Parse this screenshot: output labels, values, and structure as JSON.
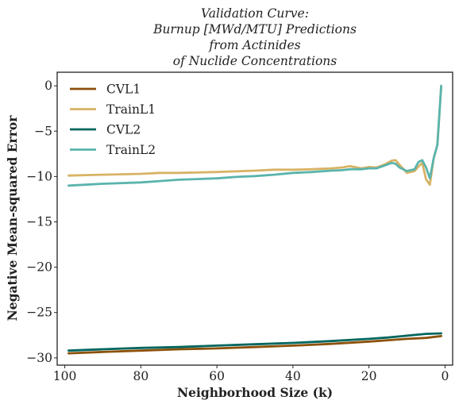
{
  "chart_data": {
    "type": "line",
    "title_lines": [
      "Validation Curve:",
      "Burnup [MWd/MTU] Predictions",
      "from Actinides",
      "of Nuclide Concentrations"
    ],
    "xlabel": "Neighborhood Size (k)",
    "ylabel": "Negative Mean-squared Error",
    "x_inverted": true,
    "xlim": [
      102,
      -2
    ],
    "ylim": [
      -30.8,
      1.5
    ],
    "xticks": [
      100,
      80,
      60,
      40,
      20,
      0
    ],
    "yticks": [
      0,
      -5,
      -10,
      -15,
      -20,
      -25,
      -30
    ],
    "xtick_labels": [
      "100",
      "80",
      "60",
      "40",
      "20",
      "0"
    ],
    "ytick_labels": [
      "0",
      "−5",
      "−10",
      "−15",
      "−20",
      "−25",
      "−30"
    ],
    "grid": false,
    "legend_position": "top-left",
    "series": [
      {
        "name": "CVL1",
        "color": "#8c510a",
        "x": [
          99,
          90,
          80,
          70,
          60,
          50,
          40,
          30,
          20,
          15,
          10,
          5,
          1
        ],
        "y": [
          -29.5,
          -29.35,
          -29.2,
          -29.05,
          -28.95,
          -28.8,
          -28.65,
          -28.45,
          -28.2,
          -28.05,
          -27.9,
          -27.8,
          -27.6
        ]
      },
      {
        "name": "TrainL1",
        "color": "#d8b365",
        "x": [
          99,
          90,
          80,
          75,
          70,
          60,
          50,
          45,
          40,
          35,
          30,
          27,
          25,
          22,
          20,
          18,
          16,
          14,
          13,
          12,
          10,
          8,
          7,
          6,
          5,
          4,
          3,
          2,
          1
        ],
        "y": [
          -9.9,
          -9.8,
          -9.7,
          -9.6,
          -9.6,
          -9.5,
          -9.35,
          -9.25,
          -9.25,
          -9.2,
          -9.1,
          -9.0,
          -8.85,
          -9.1,
          -8.95,
          -9.0,
          -8.7,
          -8.25,
          -8.2,
          -8.7,
          -9.6,
          -9.4,
          -8.9,
          -8.5,
          -10.3,
          -10.9,
          -8.0,
          -6.5,
          0.0
        ]
      },
      {
        "name": "CVL2",
        "color": "#01665e",
        "x": [
          99,
          90,
          80,
          70,
          60,
          50,
          40,
          30,
          20,
          15,
          10,
          5,
          1
        ],
        "y": [
          -29.2,
          -29.05,
          -28.9,
          -28.8,
          -28.65,
          -28.5,
          -28.35,
          -28.15,
          -27.9,
          -27.75,
          -27.55,
          -27.35,
          -27.3
        ]
      },
      {
        "name": "TrainL2",
        "color": "#5ab4ac",
        "x": [
          99,
          90,
          80,
          75,
          70,
          60,
          55,
          50,
          45,
          40,
          35,
          30,
          27,
          25,
          22,
          20,
          18,
          16,
          14,
          13,
          12,
          10,
          8,
          7,
          6,
          5,
          4,
          3,
          2,
          1
        ],
        "y": [
          -11.0,
          -10.8,
          -10.65,
          -10.5,
          -10.35,
          -10.2,
          -10.05,
          -9.95,
          -9.8,
          -9.6,
          -9.5,
          -9.35,
          -9.3,
          -9.2,
          -9.2,
          -9.1,
          -9.1,
          -8.8,
          -8.5,
          -8.6,
          -9.0,
          -9.4,
          -9.2,
          -8.4,
          -8.2,
          -9.0,
          -10.2,
          -8.0,
          -6.5,
          0.0
        ]
      }
    ]
  }
}
